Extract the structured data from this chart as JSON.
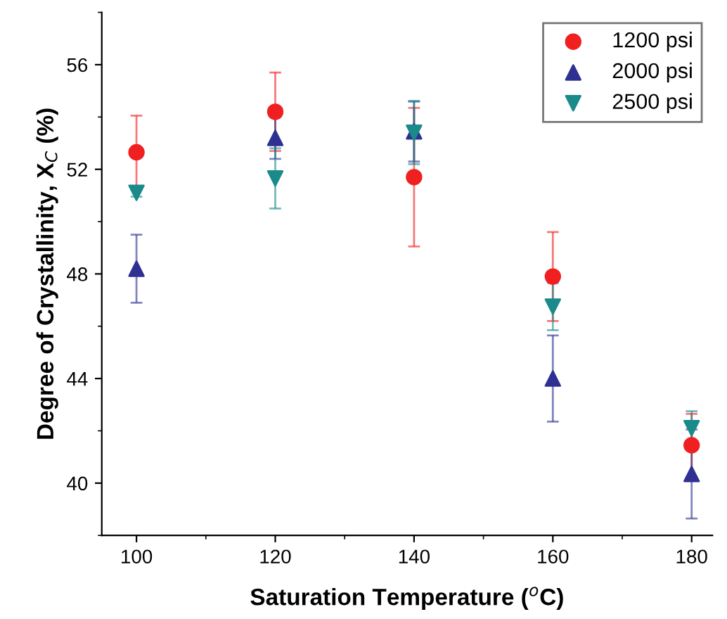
{
  "chart_data": {
    "type": "scatter",
    "xlabel": "Saturation Temperature ($^{o}$C)",
    "ylabel": "Degree of Crystallinity, X$_{C}$ (%)",
    "x": [
      100,
      120,
      140,
      160,
      180
    ],
    "xlim": [
      95,
      183
    ],
    "ylim": [
      38,
      58
    ],
    "xticks": [
      100,
      120,
      140,
      160,
      180
    ],
    "yticks": [
      40,
      44,
      48,
      52,
      56
    ],
    "legend": "top right",
    "grid": false,
    "series": [
      {
        "name": "1200 psi",
        "color": "#f02020",
        "marker": "circle",
        "values": [
          52.65,
          54.2,
          51.7,
          47.9,
          41.45
        ],
        "errors": [
          1.4,
          1.5,
          2.65,
          1.7,
          1.2
        ]
      },
      {
        "name": "2000 psi",
        "color": "#2e3192",
        "marker": "triangle",
        "values": [
          48.2,
          53.2,
          53.45,
          44.0,
          40.35
        ],
        "errors": [
          1.3,
          0.8,
          1.15,
          1.65,
          1.7
        ]
      },
      {
        "name": "2500 psi",
        "color": "#1a8a8a",
        "marker": "triangle_down",
        "values": [
          51.1,
          51.65,
          53.4,
          46.75,
          42.1
        ],
        "errors": [
          0.15,
          1.15,
          1.2,
          0.9,
          0.65
        ]
      }
    ]
  }
}
